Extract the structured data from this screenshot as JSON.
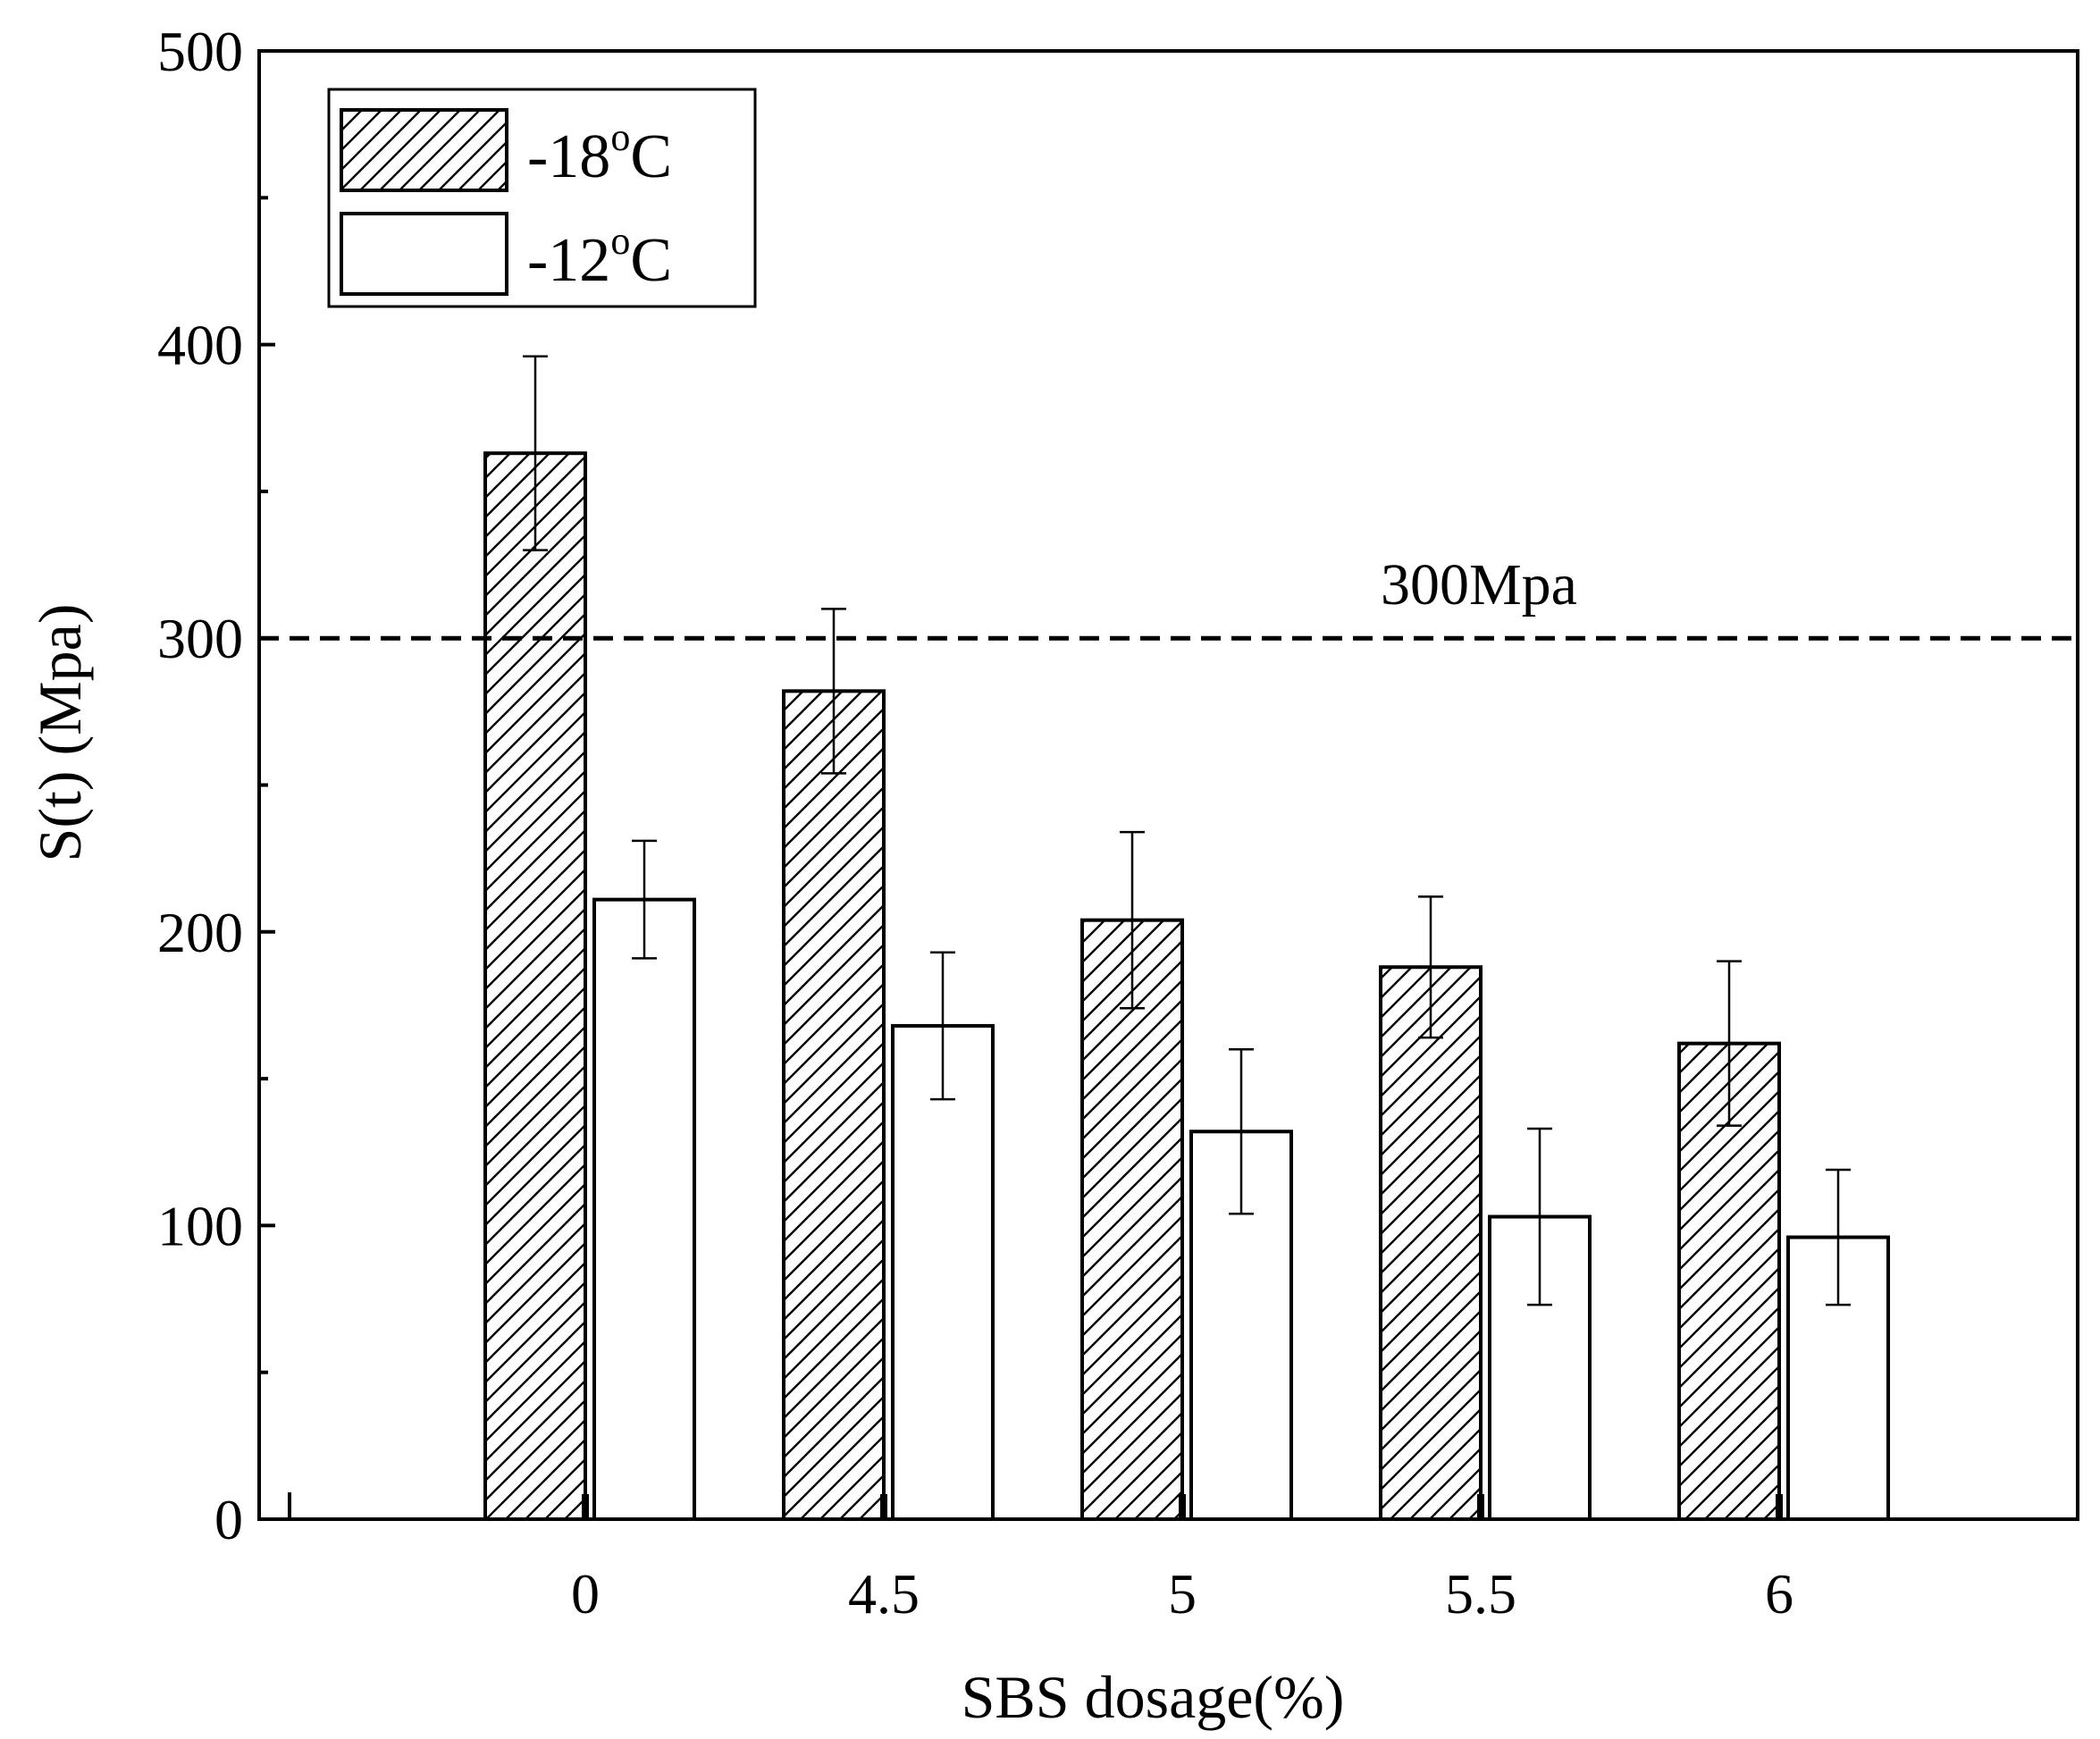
{
  "chart_data": {
    "type": "bar",
    "title": "",
    "xlabel": "SBS dosage(%)",
    "ylabel": "S(t) (Mpa)",
    "ylim": [
      0,
      500
    ],
    "yticks": [
      0,
      100,
      200,
      300,
      400,
      500
    ],
    "categories": [
      "0",
      "4.5",
      "5",
      "5.5",
      "6"
    ],
    "series": [
      {
        "name": "-18",
        "unit_sup": "o",
        "unit": "C",
        "pattern": "hatched",
        "values": [
          363,
          282,
          204,
          188,
          162
        ],
        "errors": [
          33,
          28,
          30,
          24,
          28
        ]
      },
      {
        "name": "-12",
        "unit_sup": "o",
        "unit": "C",
        "pattern": "white",
        "values": [
          211,
          168,
          132,
          103,
          96
        ],
        "errors": [
          20,
          25,
          28,
          30,
          23
        ]
      }
    ],
    "reference_line": {
      "value": 300,
      "label": "300Mpa",
      "style": "dashed"
    },
    "legend_position": "top-left",
    "grid": false
  }
}
